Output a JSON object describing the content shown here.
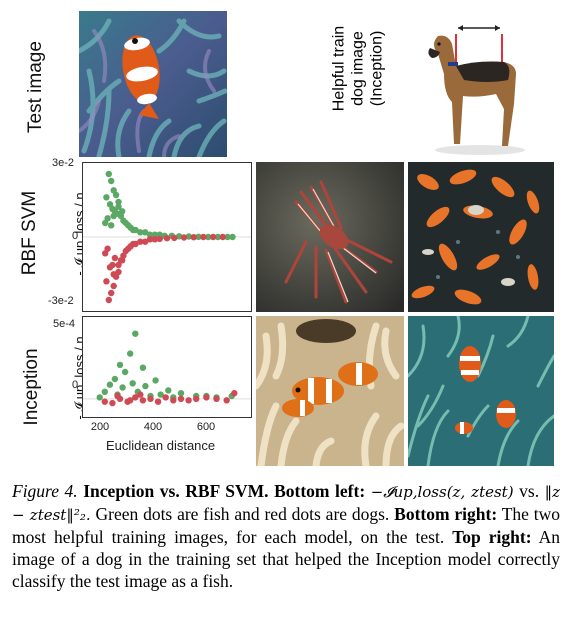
{
  "labels": {
    "test_image": "Test image",
    "helpful_line1": "Helpful train",
    "helpful_line2": "dog image",
    "helpful_line3": "(Inception)",
    "row_rbf": "RBF SVM",
    "row_inception": "Inception",
    "ylabel_rbf": "- 𝓘 up, loss / n",
    "ylabel_inception": "- 𝓘 up, loss / n"
  },
  "caption": {
    "figure_label": "Figure 4.",
    "title_a": "Inception vs. RBF SVM.",
    "bottom_left_label": "Bottom left:",
    "formula_a": "−𝓘up,loss(z, ztest)",
    "vs": "vs.",
    "formula_b": "‖z − ztest‖²₂.",
    "sentence_1": "Green dots are fish and red dots are dogs.",
    "bottom_right_label": "Bottom right:",
    "sentence_2": "The two most helpful training images, for each model, on the test.",
    "top_right_label": "Top right:",
    "sentence_3": "An image of a dog in the training set that helped the Inception model correctly classify the test image as a fish."
  },
  "chart_data": [
    {
      "type": "scatter",
      "name": "RBF SVM",
      "ylabel": "- 𝓘 up, loss / n",
      "yticks": [
        "3e-2",
        "0",
        "-3e-2"
      ],
      "ylim": [
        -0.03,
        0.03
      ],
      "xlim": [
        100,
        760
      ],
      "colors": {
        "fish": "#5aa864",
        "dog": "#cf4a55"
      },
      "series": [
        {
          "name": "fish",
          "points": [
            [
              190,
              0.027
            ],
            [
              200,
              0.024
            ],
            [
              210,
              0.02
            ],
            [
              220,
              0.018
            ],
            [
              180,
              0.017
            ],
            [
              230,
              0.015
            ],
            [
              195,
              0.014
            ],
            [
              205,
              0.012
            ],
            [
              215,
              0.011
            ],
            [
              225,
              0.01
            ],
            [
              240,
              0.009
            ],
            [
              185,
              0.008
            ],
            [
              250,
              0.007
            ],
            [
              260,
              0.006
            ],
            [
              270,
              0.005
            ],
            [
              200,
              0.005
            ],
            [
              280,
              0.004
            ],
            [
              290,
              0.003
            ],
            [
              300,
              0.003
            ],
            [
              320,
              0.002
            ],
            [
              340,
              0.002
            ],
            [
              360,
              0.001
            ],
            [
              380,
              0.001
            ],
            [
              400,
              0.001
            ],
            [
              420,
              0.0005
            ],
            [
              450,
              0.0005
            ],
            [
              480,
              0.0003
            ],
            [
              520,
              0.0002
            ],
            [
              560,
              0.0001
            ],
            [
              600,
              0.0
            ],
            [
              640,
              0.0
            ],
            [
              680,
              0.0
            ],
            [
              700,
              0.0
            ],
            [
              230,
              0.013
            ],
            [
              245,
              0.011
            ],
            [
              210,
              0.009
            ],
            [
              175,
              0.006
            ]
          ]
        },
        {
          "name": "dog",
          "points": [
            [
              190,
              -0.027
            ],
            [
              200,
              -0.024
            ],
            [
              210,
              -0.021
            ],
            [
              180,
              -0.019
            ],
            [
              220,
              -0.017
            ],
            [
              230,
              -0.015
            ],
            [
              195,
              -0.013
            ],
            [
              205,
              -0.012
            ],
            [
              240,
              -0.01
            ],
            [
              215,
              -0.009
            ],
            [
              250,
              -0.008
            ],
            [
              260,
              -0.006
            ],
            [
              270,
              -0.005
            ],
            [
              185,
              -0.005
            ],
            [
              280,
              -0.004
            ],
            [
              290,
              -0.003
            ],
            [
              300,
              -0.003
            ],
            [
              320,
              -0.002
            ],
            [
              340,
              -0.002
            ],
            [
              360,
              -0.001
            ],
            [
              380,
              -0.001
            ],
            [
              400,
              -0.0008
            ],
            [
              430,
              -0.0005
            ],
            [
              460,
              -0.0004
            ],
            [
              500,
              -0.0002
            ],
            [
              540,
              -0.0001
            ],
            [
              580,
              0.0
            ],
            [
              620,
              0.0
            ],
            [
              660,
              0.0
            ],
            [
              230,
              -0.012
            ],
            [
              245,
              -0.01
            ],
            [
              210,
              -0.016
            ],
            [
              175,
              -0.007
            ]
          ]
        }
      ]
    },
    {
      "type": "scatter",
      "name": "Inception",
      "ylabel": "- 𝓘 up, loss / n",
      "yticks": [
        "5e-4",
        "0"
      ],
      "xticks": [
        "200",
        "400",
        "600"
      ],
      "xlabel": "Euclidean distance",
      "ylim": [
        -0.0001,
        0.00055
      ],
      "xlim": [
        130,
        760
      ],
      "colors": {
        "fish": "#5aa864",
        "dog": "#cf4a55"
      },
      "series": [
        {
          "name": "fish",
          "points": [
            [
              320,
              0.00046
            ],
            [
              300,
              0.00032
            ],
            [
              260,
              0.00024
            ],
            [
              350,
              0.00022
            ],
            [
              280,
              0.00019
            ],
            [
              240,
              0.00014
            ],
            [
              400,
              0.00013
            ],
            [
              310,
              0.00011
            ],
            [
              220,
              0.0001
            ],
            [
              360,
              9e-05
            ],
            [
              270,
              8e-05
            ],
            [
              450,
              6e-05
            ],
            [
              200,
              5e-05
            ],
            [
              500,
              4e-05
            ],
            [
              330,
              5e-05
            ],
            [
              420,
              3e-05
            ],
            [
              560,
              2e-05
            ],
            [
              600,
              2e-05
            ],
            [
              250,
              3e-05
            ],
            [
              380,
              2e-05
            ],
            [
              470,
              1e-05
            ],
            [
              640,
              1e-05
            ],
            [
              700,
              2e-05
            ],
            [
              180,
              1e-05
            ]
          ]
        },
        {
          "name": "dog",
          "points": [
            [
              200,
              -2e-05
            ],
            [
              230,
              -3e-05
            ],
            [
              260,
              0.0
            ],
            [
              290,
              -2e-05
            ],
            [
              320,
              1e-05
            ],
            [
              350,
              -1e-05
            ],
            [
              380,
              0.0
            ],
            [
              410,
              -2e-05
            ],
            [
              440,
              1e-05
            ],
            [
              470,
              -1e-05
            ],
            [
              500,
              0.0
            ],
            [
              530,
              -1e-05
            ],
            [
              560,
              0.0
            ],
            [
              600,
              1e-05
            ],
            [
              640,
              0.0
            ],
            [
              680,
              -1e-05
            ],
            [
              710,
              4e-05
            ],
            [
              250,
              2e-05
            ],
            [
              340,
              3e-05
            ],
            [
              300,
              -1e-05
            ]
          ]
        }
      ]
    }
  ]
}
